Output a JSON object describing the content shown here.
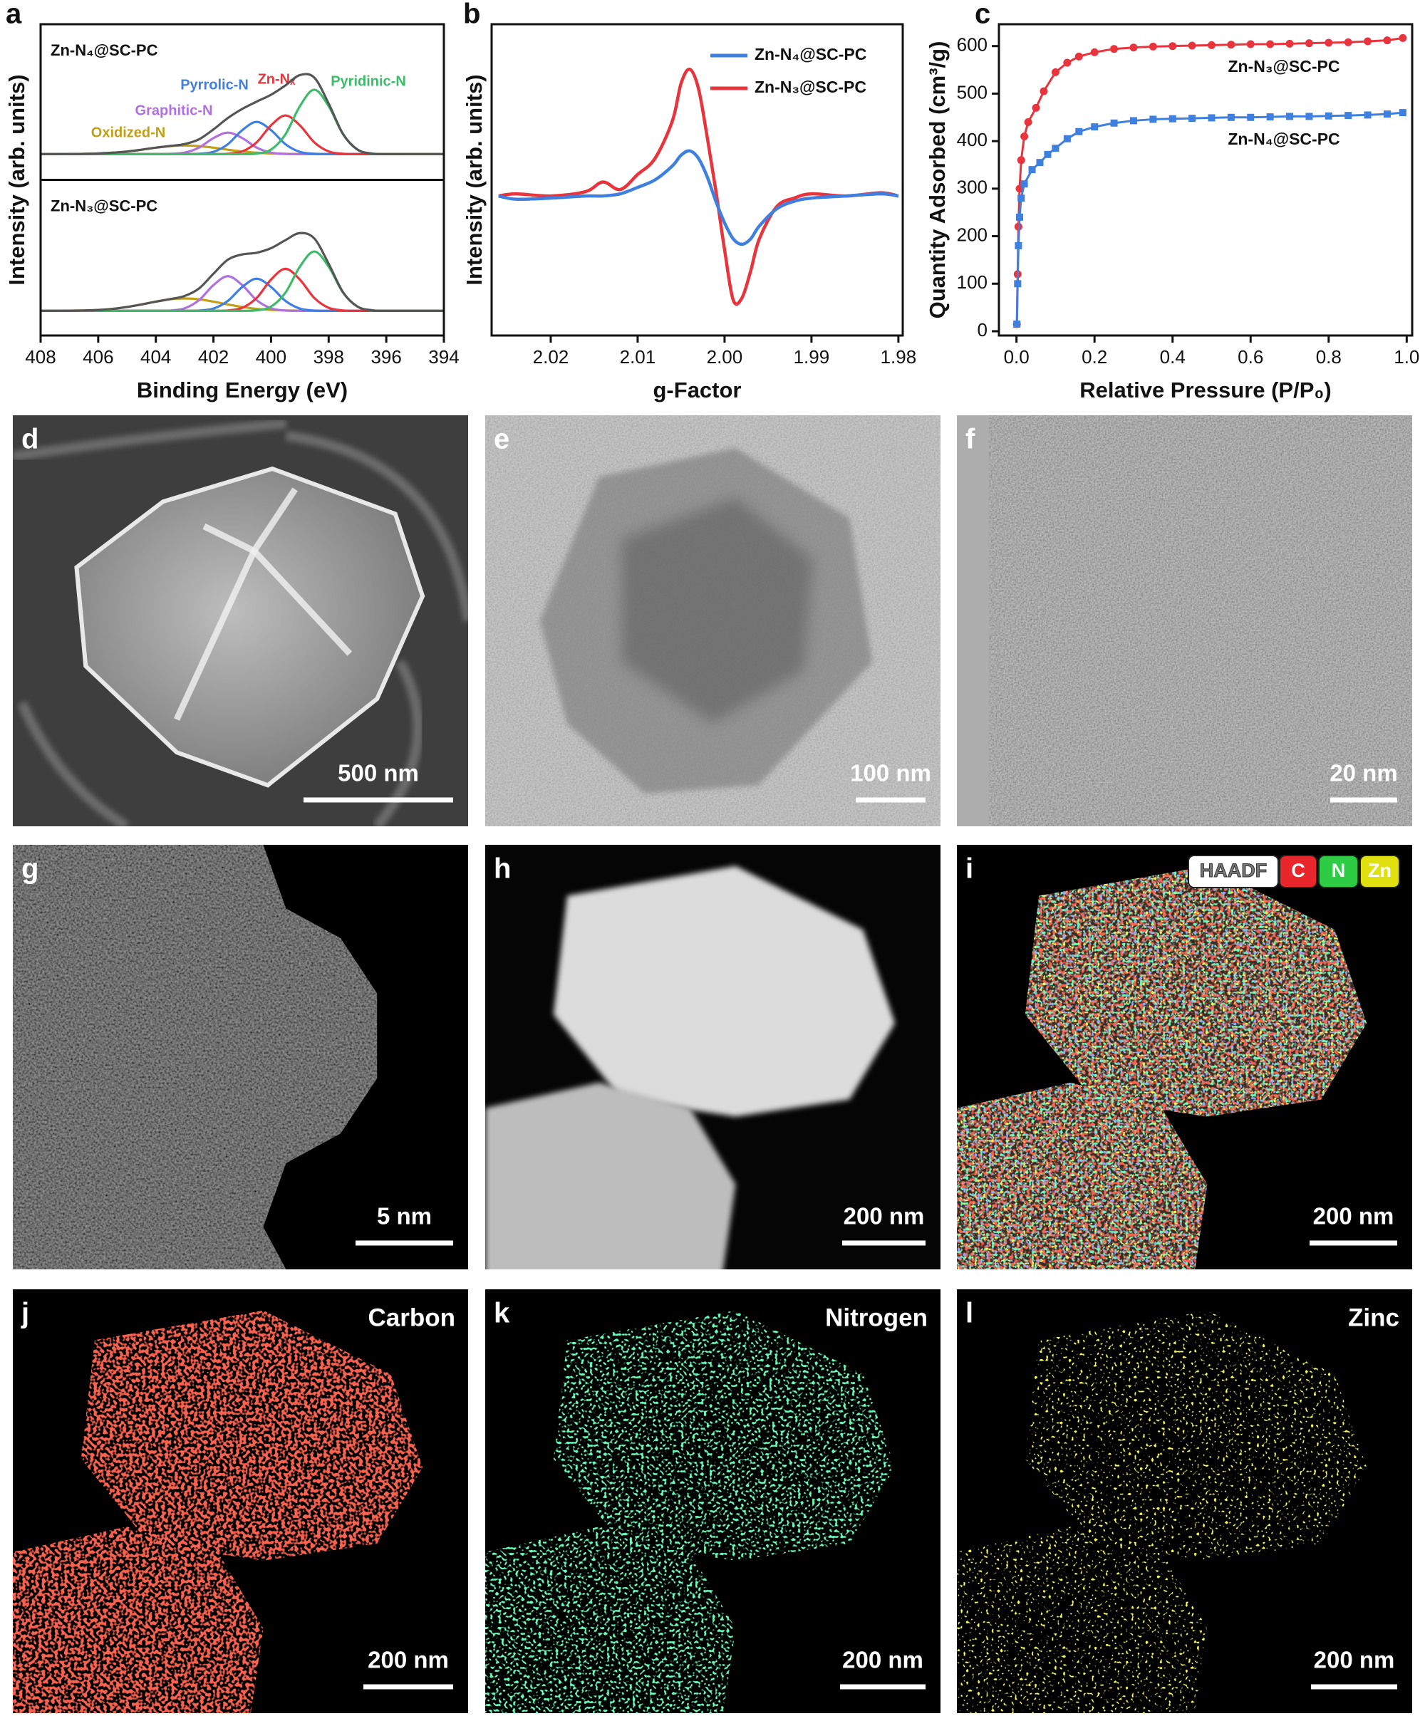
{
  "chart_data": [
    {
      "type": "line",
      "panel": "a",
      "xlabel": "Binding Energy (eV)",
      "ylabel": "Intensity (arb. units)",
      "x": [
        408,
        407.5,
        407,
        406.5,
        406,
        405.5,
        405,
        404.5,
        404,
        403.5,
        403,
        402.5,
        402,
        401.5,
        401,
        400.5,
        400,
        399.5,
        399,
        398.5,
        398,
        397.5,
        397,
        396.5,
        396,
        395.5,
        395,
        394.5,
        394
      ],
      "xlim": [
        408,
        394
      ],
      "xticks": [
        408,
        406,
        404,
        402,
        400,
        398,
        396,
        394
      ],
      "subplots": [
        {
          "title": "Zn-N₄@SC-PC",
          "ylim": [
            -24,
            121
          ],
          "series": [
            {
              "color": "#555555",
              "values": [
                0,
                0,
                0.1,
                0.2,
                0.6,
                1.3,
                2.4,
                4.1,
                6,
                7.6,
                9.4,
                13.8,
                23,
                33.6,
                42.1,
                48.9,
                55.3,
                64,
                73.6,
                71.3,
                47.1,
                18.7,
                4.2,
                0.5,
                0,
                0,
                0,
                0,
                0
              ]
            },
            {
              "name": "Pyridinic-N",
              "color": "#3dbb6a",
              "values": [
                0,
                0,
                0,
                0,
                0,
                0,
                0,
                0,
                0,
                0,
                0,
                0,
                0,
                0,
                0,
                0.5,
                4.2,
                18.4,
                44.6,
                60,
                44.6,
                18.4,
                4.2,
                0.5,
                0,
                0,
                0,
                0,
                0
              ]
            },
            {
              "name": "Zn-Nₓ",
              "color": "#e8343c",
              "values": [
                0,
                0,
                0,
                0,
                0,
                0,
                0,
                0,
                0,
                0,
                0,
                0,
                0,
                0.3,
                2.5,
                11,
                26.8,
                36,
                26.8,
                11,
                2.5,
                0.3,
                0,
                0,
                0,
                0,
                0,
                0,
                0
              ]
            },
            {
              "name": "Pyrrolic-N",
              "color": "#3f7fe0",
              "values": [
                0,
                0,
                0,
                0,
                0,
                0,
                0,
                0,
                0,
                0,
                0,
                0.3,
                2.1,
                9.2,
                22.3,
                30,
                22.3,
                9.2,
                2.1,
                0.3,
                0,
                0,
                0,
                0,
                0,
                0,
                0,
                0,
                0
              ]
            },
            {
              "name": "Graphitic-N",
              "color": "#b070e0",
              "values": [
                0,
                0,
                0,
                0,
                0,
                0,
                0,
                0,
                0,
                0.2,
                1.4,
                6.1,
                14.9,
                20,
                14.9,
                6.1,
                1.4,
                0.2,
                0,
                0,
                0,
                0,
                0,
                0,
                0,
                0,
                0,
                0,
                0
              ]
            },
            {
              "name": "Oxidized-N",
              "color": "#c2a016",
              "values": [
                0,
                0,
                0.1,
                0.2,
                0.6,
                1.3,
                2.4,
                4.1,
                6,
                7.4,
                8,
                7.4,
                6,
                4.1,
                2.4,
                1.3,
                0.6,
                0.2,
                0.1,
                0,
                0,
                0,
                0,
                0,
                0,
                0,
                0,
                0,
                0
              ]
            }
          ]
        },
        {
          "title": "Zn-N₃@SC-PC",
          "ylim": [
            -20,
            106
          ],
          "series": [
            {
              "color": "#555555",
              "values": [
                0,
                0,
                0.1,
                0.3,
                0.7,
                1.6,
                3.1,
                5.1,
                7.4,
                9.5,
                12,
                18.1,
                30,
                41.4,
                45.6,
                47,
                50.7,
                57.2,
                62.9,
                58.6,
                38.1,
                15,
                3.4,
                0.4,
                0,
                0,
                0,
                0,
                0
              ]
            },
            {
              "color": "#3dbb6a",
              "values": [
                0,
                0,
                0,
                0,
                0,
                0,
                0,
                0,
                0,
                0,
                0,
                0,
                0,
                0,
                0,
                0.4,
                3.4,
                14.7,
                35.7,
                48,
                35.7,
                14.7,
                3.4,
                0.4,
                0,
                0,
                0,
                0,
                0
              ]
            },
            {
              "color": "#e8343c",
              "values": [
                0,
                0,
                0,
                0,
                0,
                0,
                0,
                0,
                0,
                0,
                0,
                0,
                0,
                0.3,
                2.4,
                10.4,
                25.3,
                34,
                25.3,
                10.4,
                2.4,
                0.3,
                0,
                0,
                0,
                0,
                0,
                0,
                0
              ]
            },
            {
              "color": "#3f7fe0",
              "values": [
                0,
                0,
                0,
                0,
                0,
                0,
                0,
                0,
                0,
                0,
                0,
                0.2,
                1.8,
                8,
                19.3,
                26,
                19.3,
                8,
                1.8,
                0.2,
                0,
                0,
                0,
                0,
                0,
                0,
                0,
                0,
                0
              ]
            },
            {
              "color": "#b070e0",
              "values": [
                0,
                0,
                0,
                0,
                0,
                0,
                0,
                0,
                0,
                0.2,
                2,
                8.6,
                20.8,
                28,
                20.8,
                8.6,
                2,
                0.2,
                0,
                0,
                0,
                0,
                0,
                0,
                0,
                0,
                0,
                0,
                0
              ]
            },
            {
              "color": "#c2a016",
              "values": [
                0,
                0,
                0.1,
                0.3,
                0.7,
                1.6,
                3.1,
                5.1,
                7.4,
                9.3,
                10,
                9.3,
                7.4,
                5.1,
                3.1,
                1.6,
                0.7,
                0.3,
                0.1,
                0,
                0,
                0,
                0,
                0,
                0,
                0,
                0,
                0,
                0
              ]
            }
          ]
        }
      ]
    },
    {
      "type": "line",
      "panel": "b",
      "xlabel": "g-Factor",
      "ylabel": "Intensity (arb. units)",
      "x": [
        2.026,
        2.024,
        2.02,
        2.016,
        2.014,
        2.012,
        2.01,
        2.008,
        2.006,
        2.005,
        2.004,
        2.003,
        2.002,
        2.001,
        2,
        1.999,
        1.998,
        1.997,
        1.996,
        1.994,
        1.992,
        1.99,
        1.986,
        1.982,
        1.98
      ],
      "xlim": [
        2.0268,
        1.9795
      ],
      "xticks": [
        2.02,
        2.01,
        {
          "value": 2,
          "label": "2.00"
        },
        1.99,
        1.98
      ],
      "ylim": [
        -130,
        160
      ],
      "legend": "upper right",
      "series": [
        {
          "name": "Zn-N₄@SC-PC",
          "color": "#3f7fe0",
          "values": [
            0,
            -3,
            -2,
            0,
            0,
            2,
            8,
            15,
            28,
            38,
            42,
            35,
            18,
            -5,
            -25,
            -40,
            -45,
            -40,
            -28,
            -12,
            -5,
            -2,
            0,
            2,
            0
          ]
        },
        {
          "name": "Zn-N₃@SC-PC",
          "color": "#e8343c",
          "values": [
            0,
            2,
            0,
            4,
            13,
            6,
            20,
            35,
            70,
            105,
            118,
            100,
            55,
            5,
            -50,
            -97,
            -95,
            -70,
            -40,
            -10,
            -2,
            2,
            0,
            3,
            0
          ]
        }
      ]
    },
    {
      "type": "line",
      "panel": "c",
      "xlabel": "Relative Pressure (P/P₀)",
      "ylabel": "Quantity Adsorbed (cm³/g)",
      "xlim": [
        -0.045,
        1.014
      ],
      "xticks": [
        {
          "value": 0,
          "label": "0.0"
        },
        0.2,
        0.4,
        0.6,
        0.8,
        {
          "value": 1,
          "label": "1.0"
        }
      ],
      "ylim": [
        -9,
        646
      ],
      "yticks": [
        0,
        100,
        200,
        300,
        400,
        500,
        600
      ],
      "series": [
        {
          "name": "Zn-N₄@SC-PC",
          "color": "#3f7fe0",
          "marker": "square",
          "x": [
            0.001,
            0.003,
            0.005,
            0.008,
            0.012,
            0.02,
            0.04,
            0.06,
            0.08,
            0.1,
            0.13,
            0.16,
            0.2,
            0.25,
            0.3,
            0.35,
            0.4,
            0.45,
            0.5,
            0.55,
            0.6,
            0.65,
            0.7,
            0.75,
            0.8,
            0.85,
            0.9,
            0.95,
            0.99
          ],
          "values": [
            15,
            100,
            180,
            240,
            280,
            310,
            340,
            355,
            372,
            385,
            405,
            420,
            430,
            438,
            443,
            446,
            447,
            448,
            449,
            450,
            450,
            451,
            452,
            452,
            453,
            454,
            455,
            457,
            460
          ]
        },
        {
          "name": "Zn-N₃@SC-PC",
          "color": "#e8343c",
          "marker": "circle",
          "x": [
            0.001,
            0.003,
            0.005,
            0.008,
            0.012,
            0.02,
            0.03,
            0.05,
            0.07,
            0.1,
            0.13,
            0.16,
            0.2,
            0.25,
            0.3,
            0.35,
            0.4,
            0.45,
            0.5,
            0.55,
            0.6,
            0.65,
            0.7,
            0.75,
            0.8,
            0.85,
            0.9,
            0.95,
            0.99
          ],
          "values": [
            15,
            120,
            220,
            300,
            360,
            410,
            440,
            470,
            505,
            545,
            565,
            578,
            587,
            594,
            597,
            599,
            600,
            601,
            602,
            603,
            604,
            604,
            605,
            606,
            607,
            608,
            610,
            612,
            617
          ]
        }
      ]
    }
  ],
  "images": [
    {
      "panel": "d",
      "scale_bar": "500 nm"
    },
    {
      "panel": "e",
      "scale_bar": "100 nm"
    },
    {
      "panel": "f",
      "scale_bar": "20 nm"
    },
    {
      "panel": "g",
      "scale_bar": "5 nm"
    },
    {
      "panel": "h",
      "scale_bar": "200 nm"
    },
    {
      "panel": "i",
      "scale_bar": "200 nm",
      "legend": [
        "HAADF",
        "C",
        "N",
        "Zn"
      ]
    },
    {
      "panel": "j",
      "scale_bar": "200 nm",
      "element": "Carbon"
    },
    {
      "panel": "k",
      "scale_bar": "200 nm",
      "element": "Nitrogen"
    },
    {
      "panel": "l",
      "scale_bar": "200 nm",
      "element": "Zinc"
    }
  ]
}
